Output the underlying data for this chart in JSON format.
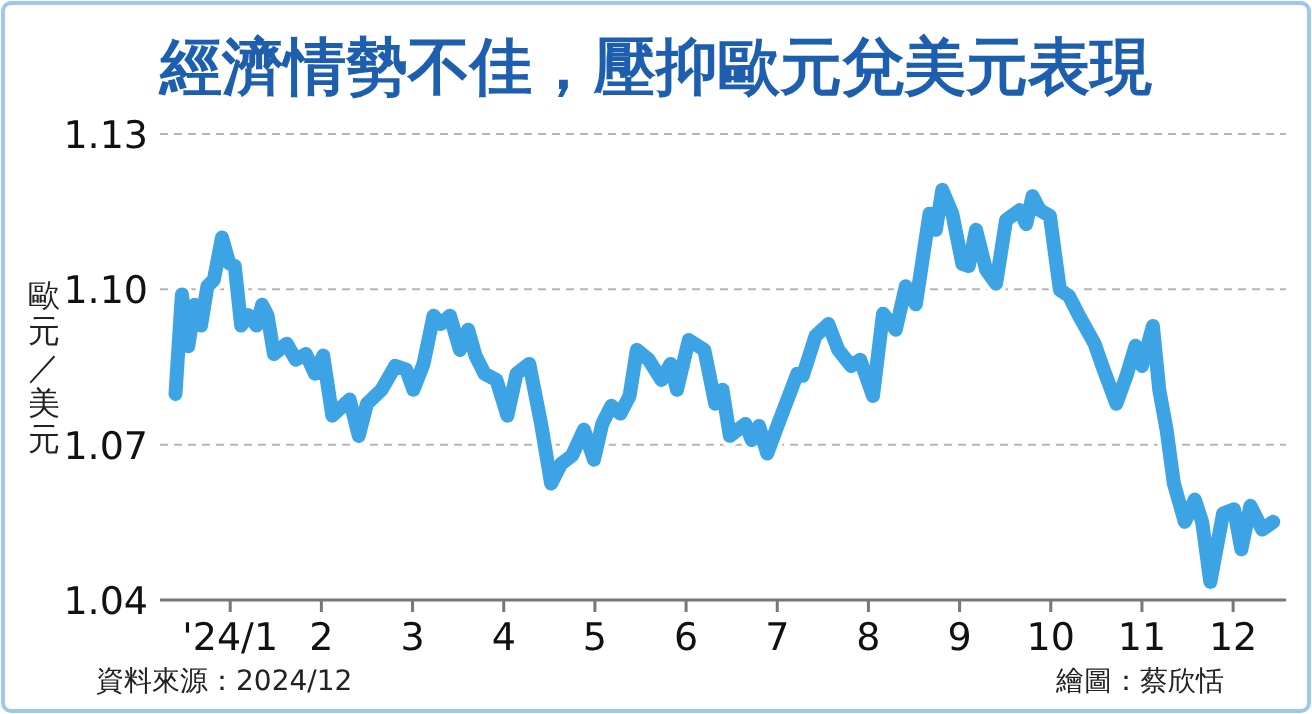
{
  "chart_data": {
    "type": "line",
    "title": "經濟情勢不佳，壓抑歐元兌美元表現",
    "ylabel": "歐元／美元",
    "annotations": [
      "資料來源：2024/12",
      "繪圖：蔡欣恬"
    ],
    "grid": "y",
    "marker": "none",
    "line_style": "solid",
    "xlim": [
      0.23,
      12.58
    ],
    "ylim": [
      1.04,
      1.13
    ],
    "xticks": [
      {
        "value": 1,
        "label": "'24/1"
      },
      2,
      3,
      4,
      5,
      6,
      7,
      8,
      9,
      10,
      11,
      12
    ],
    "yticks": [
      1.04,
      1.07,
      {
        "value": 1.1,
        "label": "1.10"
      },
      1.13
    ],
    "series": [
      {
        "color": "#3ca3e4",
        "x": [
          0.4,
          0.47,
          0.54,
          0.61,
          0.68,
          0.75,
          0.82,
          0.91,
          0.99,
          1.05,
          1.12,
          1.2,
          1.29,
          1.35,
          1.41,
          1.48,
          1.62,
          1.72,
          1.83,
          1.93,
          2.02,
          2.12,
          2.31,
          2.41,
          2.5,
          2.66,
          2.81,
          2.93,
          3.01,
          3.12,
          3.23,
          3.31,
          3.41,
          3.52,
          3.61,
          3.69,
          3.79,
          3.92,
          4.04,
          4.14,
          4.28,
          4.41,
          4.52,
          4.63,
          4.75,
          4.88,
          4.99,
          5.08,
          5.18,
          5.28,
          5.38,
          5.46,
          5.59,
          5.73,
          5.83,
          5.9,
          6.03,
          6.2,
          6.32,
          6.4,
          6.48,
          6.65,
          6.72,
          6.8,
          6.89,
          7.01,
          7.22,
          7.28,
          7.42,
          7.56,
          7.67,
          7.81,
          7.91,
          8.05,
          8.16,
          8.3,
          8.41,
          8.52,
          8.67,
          8.74,
          8.81,
          8.92,
          9.03,
          9.1,
          9.18,
          9.29,
          9.4,
          9.51,
          9.66,
          9.73,
          9.8,
          9.88,
          9.99,
          10.1,
          10.2,
          10.31,
          10.48,
          10.58,
          10.72,
          10.83,
          10.93,
          11.0,
          11.12,
          11.19,
          11.27,
          11.35,
          11.47,
          11.58,
          11.66,
          11.75,
          11.89,
          12.01,
          12.09,
          12.19,
          12.32,
          12.44
        ],
        "values": [
          1.0798,
          1.099,
          1.089,
          1.097,
          1.093,
          1.1006,
          1.1018,
          1.11,
          1.105,
          1.1045,
          1.093,
          1.095,
          1.093,
          1.097,
          1.0949,
          1.0875,
          1.0895,
          1.0864,
          1.0875,
          1.0837,
          1.0872,
          1.0756,
          1.0787,
          1.0717,
          1.0779,
          1.0806,
          1.0852,
          1.0845,
          1.0806,
          1.0856,
          1.0949,
          1.0933,
          1.0949,
          1.0883,
          1.0922,
          1.0872,
          1.0837,
          1.0825,
          1.0756,
          1.0837,
          1.0856,
          1.074,
          1.0625,
          1.0663,
          1.0679,
          1.0729,
          1.0671,
          1.074,
          1.0775,
          1.076,
          1.0794,
          1.0883,
          1.0864,
          1.0825,
          1.0856,
          1.0806,
          1.0902,
          1.0883,
          1.0779,
          1.0806,
          1.0717,
          1.074,
          1.0709,
          1.0736,
          1.0683,
          1.074,
          1.0837,
          1.0833,
          1.091,
          1.0933,
          1.0883,
          1.0852,
          1.0864,
          1.0794,
          1.0953,
          1.0922,
          1.1006,
          1.0971,
          1.1146,
          1.1115,
          1.1192,
          1.1146,
          1.1049,
          1.1045,
          1.1115,
          1.1038,
          1.1011,
          1.1134,
          1.1153,
          1.1126,
          1.118,
          1.1153,
          1.1142,
          1.0999,
          1.0987,
          1.0949,
          1.0895,
          1.0845,
          1.0779,
          1.0833,
          1.0891,
          1.0852,
          1.0929,
          1.0806,
          1.0729,
          1.0625,
          1.0551,
          1.0594,
          1.0551,
          1.0435,
          1.0567,
          1.0575,
          1.0498,
          1.0582,
          1.0536,
          1.0551
        ]
      }
    ]
  }
}
